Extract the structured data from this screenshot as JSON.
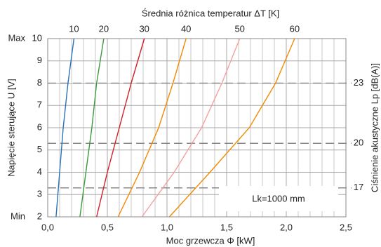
{
  "chart_data": {
    "type": "line",
    "title": "Średnia różnica temperatur ΔT [K]",
    "x_label": "Moc grzewcza Φ [kW]",
    "y_label": "Napięcie sterujące U [V]",
    "y2_label": "Ciśnienie akustyczne Lp [dB(A)]",
    "annotation": "Lk=1000 mm",
    "xlim": [
      0,
      2.5
    ],
    "xticks": [
      {
        "value": 0,
        "label": "0,0"
      },
      {
        "value": 0.5,
        "label": "0,5"
      },
      {
        "value": 1,
        "label": "1,0"
      },
      {
        "value": 1.5,
        "label": "1,5"
      },
      {
        "value": 2,
        "label": "2,0"
      },
      {
        "value": 2.5,
        "label": "2,5"
      }
    ],
    "xgrid": [
      0.1,
      0.2,
      0.3,
      0.4,
      0.6,
      0.7,
      0.8,
      0.9,
      1.1,
      1.2,
      1.3,
      1.4,
      1.6,
      1.7,
      1.8,
      1.9,
      2.1,
      2.2,
      2.3,
      2.4
    ],
    "ylim": [
      2,
      10
    ],
    "yticks": [
      2,
      3,
      4,
      5,
      6,
      7,
      8,
      9,
      10
    ],
    "y_end_labels": [
      {
        "value": 2,
        "label": "Min"
      },
      {
        "value": 10,
        "label": "Max"
      }
    ],
    "noise_levels": [
      {
        "voltage": 3.3,
        "level": 17
      },
      {
        "voltage": 5.3,
        "level": 20
      },
      {
        "voltage": 8,
        "level": 23
      }
    ],
    "grid": true,
    "series": [
      {
        "name": "10",
        "color": "#2a72b5",
        "x": [
          0.07,
          0.1,
          0.13,
          0.17,
          0.22
        ],
        "values": [
          2,
          4,
          6,
          8,
          10
        ]
      },
      {
        "name": "20",
        "color": "#3c9a3c",
        "x": [
          0.27,
          0.32,
          0.37,
          0.41,
          0.47
        ],
        "values": [
          2,
          4,
          6,
          8,
          10
        ]
      },
      {
        "name": "30",
        "color": "#d0202a",
        "x": [
          0.41,
          0.5,
          0.6,
          0.7,
          0.81
        ],
        "values": [
          2,
          4,
          6,
          8,
          10
        ]
      },
      {
        "name": "40",
        "color": "#f08a00",
        "x": [
          0.59,
          0.77,
          0.93,
          1.05,
          1.16
        ],
        "values": [
          2,
          4,
          6,
          8,
          10
        ]
      },
      {
        "name": "50",
        "color": "#f4a0a0",
        "x": [
          0.79,
          1.06,
          1.29,
          1.46,
          1.61
        ],
        "values": [
          2,
          4,
          6,
          8,
          10
        ]
      },
      {
        "name": "60",
        "color": "#f08a00",
        "x": [
          1.02,
          1.36,
          1.69,
          1.91,
          2.07
        ],
        "values": [
          2,
          4,
          6,
          8,
          10
        ]
      }
    ]
  }
}
